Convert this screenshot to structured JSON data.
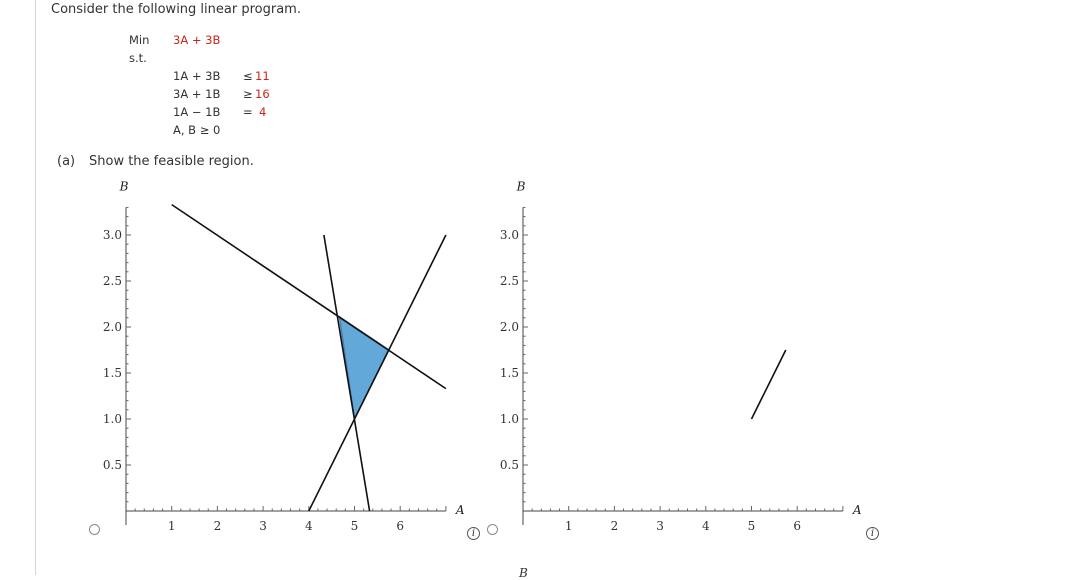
{
  "question": {
    "intro": "Consider the following linear program.",
    "objective_label": "Min",
    "objective_expr": "3A + 3B",
    "st_label": "s.t.",
    "constraints": [
      {
        "lhs": "1A + 3B",
        "op": "≤",
        "rhs": "11"
      },
      {
        "lhs": "3A + 1B",
        "op": "≥",
        "rhs": "16"
      },
      {
        "lhs": "1A − 1B",
        "op": "=",
        "rhs": "4"
      }
    ],
    "nonneg": "A, B ≥ 0",
    "part_a": "(a)",
    "part_a_text": "Show the feasible region."
  },
  "graph_left": {
    "x_axis_label": "A",
    "y_axis_label": "B",
    "x_ticks": [
      "1",
      "2",
      "3",
      "4",
      "5",
      "6"
    ],
    "y_ticks": [
      "0.5",
      "1.0",
      "1.5",
      "2.0",
      "2.5",
      "3.0"
    ],
    "feasible_fill": "#62a8d8",
    "region": [
      [
        4.67,
        2.11
      ],
      [
        5.75,
        1.75
      ],
      [
        5.0,
        1.0
      ]
    ],
    "lines": [
      {
        "name": "1A + 3B = 11",
        "from": [
          1.0,
          3.33
        ],
        "to": [
          7.0,
          1.33
        ]
      },
      {
        "name": "3A + 1B = 16",
        "from": [
          4.33,
          3.0
        ],
        "to": [
          5.33,
          0.0
        ]
      },
      {
        "name": "1A - 1B = 4",
        "from": [
          4.0,
          0.0
        ],
        "to": [
          7.0,
          3.0
        ]
      }
    ]
  },
  "graph_right": {
    "x_axis_label": "A",
    "y_axis_label": "B",
    "x_ticks": [
      "1",
      "2",
      "3",
      "4",
      "5",
      "6"
    ],
    "y_ticks": [
      "0.5",
      "1.0",
      "1.5",
      "2.0",
      "2.5",
      "3.0"
    ],
    "lines": [
      {
        "name": "segment",
        "from": [
          5.0,
          1.0
        ],
        "to": [
          5.75,
          1.75
        ]
      }
    ]
  },
  "next_graph_axis_label": "B"
}
